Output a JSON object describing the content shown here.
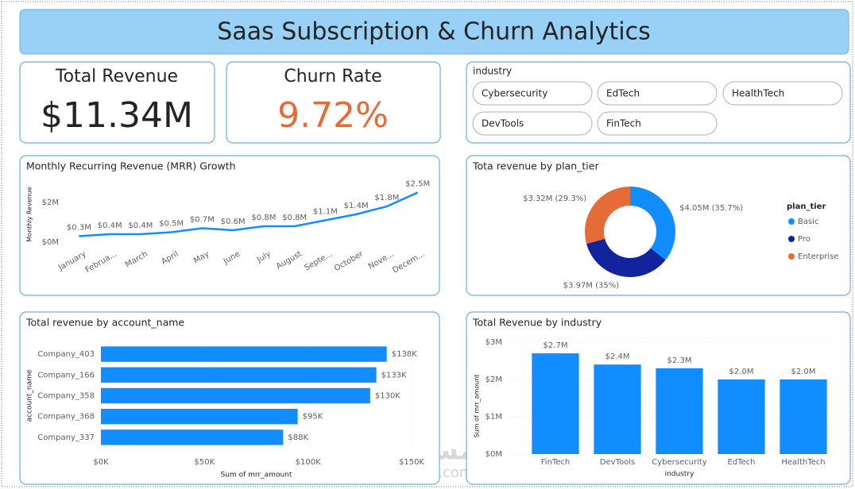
{
  "header": {
    "title": "Saas Subscription & Churn Analytics"
  },
  "cards": [
    {
      "label": "Total Revenue",
      "value": "$11.34M",
      "color": "#252423"
    },
    {
      "label": "Churn Rate",
      "value": "9.72%",
      "color": "#e66c37"
    }
  ],
  "slicer": {
    "title": "industry",
    "items": [
      "Cybersecurity",
      "EdTech",
      "HealthTech",
      "DevTools",
      "FinTech"
    ]
  },
  "chart_data": [
    {
      "type": "line",
      "title": "Monthly Recurring Revenue (MRR) Growth",
      "y_label": "Monthly Revenue",
      "categories": [
        "January",
        "Februa...",
        "March",
        "April",
        "May",
        "June",
        "July",
        "August",
        "Septe...",
        "October",
        "Nove...",
        "Decem..."
      ],
      "values": [
        0.3,
        0.4,
        0.4,
        0.5,
        0.7,
        0.6,
        0.8,
        0.8,
        1.1,
        1.4,
        1.8,
        2.5
      ],
      "value_labels": [
        "$0.3M",
        "$0.4M",
        "$0.4M",
        "$0.5M",
        "$0.7M",
        "$0.6M",
        "$0.8M",
        "$0.8M",
        "$1.1M",
        "$1.4M",
        "$1.8M",
        "$2.5M"
      ],
      "color": "#118dff",
      "ylim": [
        0,
        2.8
      ],
      "yticks": [
        {
          "value": 0,
          "label": "$0M"
        },
        {
          "value": 2,
          "label": "$2M"
        }
      ],
      "grid": false
    },
    {
      "type": "donut",
      "title": "Tota revenue by plan_tier",
      "legend_title": "plan_tier",
      "legend": "right",
      "categories": [
        "Basic",
        "Pro",
        "Enterprise"
      ],
      "values": [
        4.05,
        3.97,
        3.32
      ],
      "value_labels": [
        "$4.05M (35.7%)",
        "$3.97M (35%)",
        "$3.32M (29.3%)"
      ],
      "colors": [
        "#118dff",
        "#12239e",
        "#e66c37"
      ]
    },
    {
      "type": "bar",
      "orientation": "horizontal",
      "title": "Total revenue by account_name",
      "x_label": "Sum of mrr_amount",
      "y_label": "account_name",
      "categories": [
        "Company_403",
        "Company_166",
        "Company_358",
        "Company_368",
        "Company_337"
      ],
      "values": [
        138,
        133,
        130,
        95,
        88
      ],
      "value_labels": [
        "$138K",
        "$133K",
        "$130K",
        "$95K",
        "$88K"
      ],
      "color": "#118dff",
      "xlim": [
        0,
        150
      ],
      "xticks": [
        {
          "value": 0,
          "label": "$0K"
        },
        {
          "value": 50,
          "label": "$50K"
        },
        {
          "value": 100,
          "label": "$100K"
        },
        {
          "value": 150,
          "label": "$150K"
        }
      ],
      "grid": true
    },
    {
      "type": "bar",
      "orientation": "vertical",
      "title": "Total Revenue by industry",
      "x_label": "industry",
      "y_label": "Sum of mrr_amount",
      "categories": [
        "FinTech",
        "DevTools",
        "Cybersecurity",
        "EdTech",
        "HealthTech"
      ],
      "values": [
        2.7,
        2.4,
        2.3,
        2.0,
        2.0
      ],
      "value_labels": [
        "$2.7M",
        "$2.4M",
        "$2.3M",
        "$2.0M",
        "$2.0M"
      ],
      "color": "#118dff",
      "ylim": [
        0,
        3
      ],
      "yticks": [
        {
          "value": 0,
          "label": "$0M"
        },
        {
          "value": 1,
          "label": "$1M"
        },
        {
          "value": 2,
          "label": "$2M"
        },
        {
          "value": 3,
          "label": "$3M"
        }
      ],
      "grid": true
    }
  ],
  "watermark": {
    "logo": "مستقل",
    "site": "mostaql.com"
  }
}
